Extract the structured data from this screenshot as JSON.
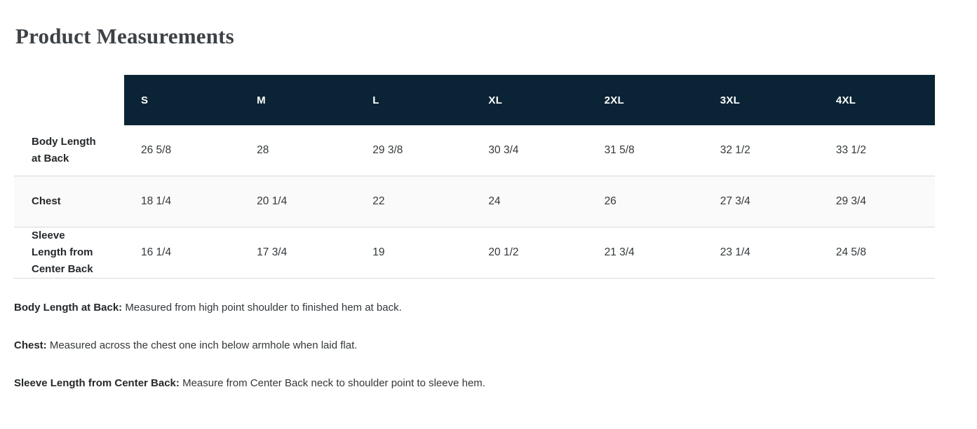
{
  "title": "Product Measurements",
  "table": {
    "size_headers": [
      "S",
      "M",
      "L",
      "XL",
      "2XL",
      "3XL",
      "4XL"
    ],
    "rows": [
      {
        "label": "Body Length\nat Back",
        "values": [
          "26 5/8",
          "28",
          "29 3/8",
          "30 3/4",
          "31 5/8",
          "32 1/2",
          "33 1/2"
        ]
      },
      {
        "label": "Chest",
        "values": [
          "18 1/4",
          "20 1/4",
          "22",
          "24",
          "26",
          "27 3/4",
          "29 3/4"
        ]
      },
      {
        "label": "Sleeve\nLength from\nCenter Back",
        "values": [
          "16 1/4",
          "17 3/4",
          "19",
          "20 1/2",
          "21 3/4",
          "23 1/4",
          "24 5/8"
        ]
      }
    ]
  },
  "footnotes": [
    {
      "term": "Body Length at Back:",
      "text": " Measured from high point shoulder to finished hem at back."
    },
    {
      "term": "Chest:",
      "text": " Measured across the chest one inch below armhole when laid flat."
    },
    {
      "term": "Sleeve Length from Center Back:",
      "text": " Measure from Center Back neck to shoulder point to sleeve hem."
    }
  ],
  "colors": {
    "header_bg": "#0a2435",
    "header_text": "#ffffff",
    "stripe_bg": "#fafafa",
    "row_border": "#d8d8d8",
    "title_text": "#3d4247"
  }
}
